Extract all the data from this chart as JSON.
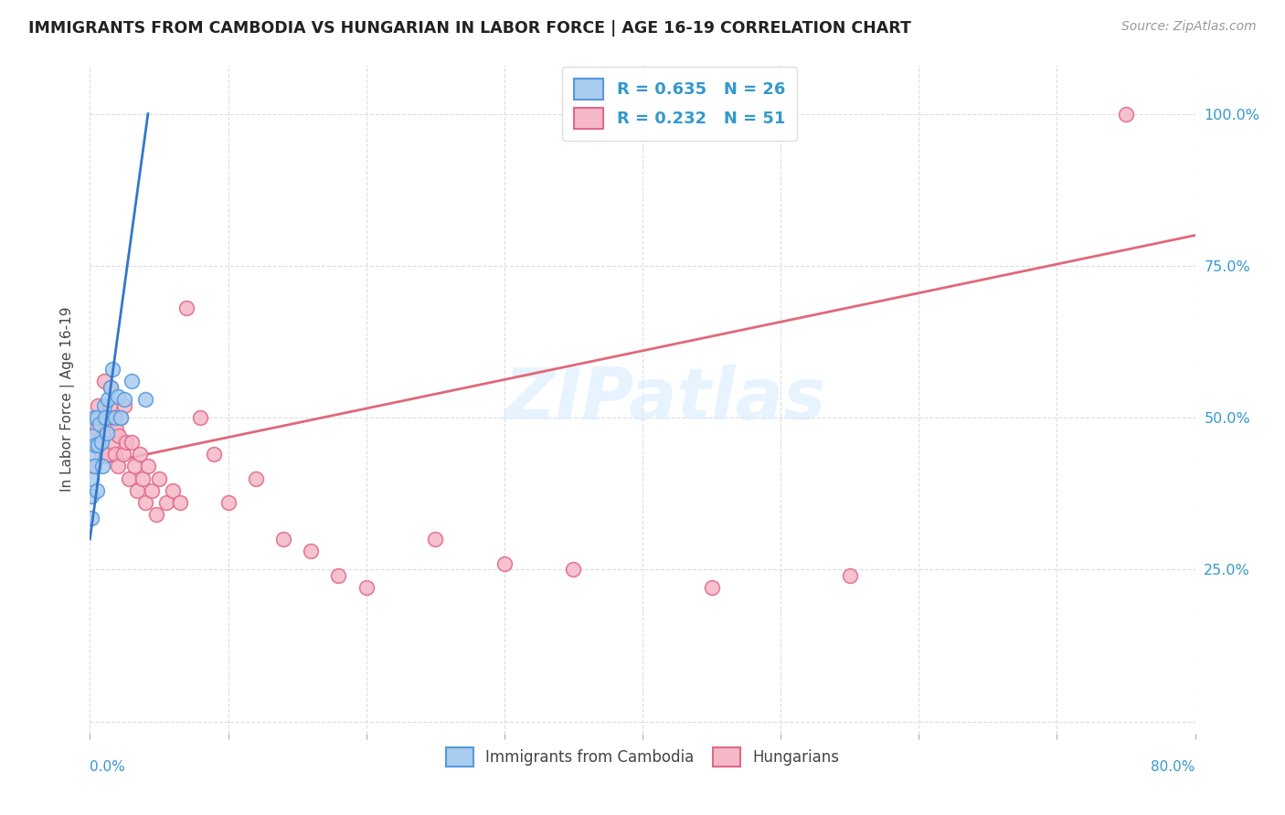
{
  "title": "IMMIGRANTS FROM CAMBODIA VS HUNGARIAN IN LABOR FORCE | AGE 16-19 CORRELATION CHART",
  "source": "Source: ZipAtlas.com",
  "ylabel": "In Labor Force | Age 16-19",
  "xmin": 0.0,
  "xmax": 0.8,
  "ymin": -0.02,
  "ymax": 1.08,
  "legend_label1": "Immigrants from Cambodia",
  "legend_label2": "Hungarians",
  "R1": 0.635,
  "N1": 26,
  "R2": 0.232,
  "N2": 51,
  "color_cambodia_fill": "#aaccee",
  "color_cambodia_edge": "#5599dd",
  "color_hungarian_fill": "#f5b8c8",
  "color_hungarian_edge": "#e06888",
  "color_cambodia_line": "#3377cc",
  "color_hungarian_line": "#e06878",
  "ytick_labels": [
    "",
    "25.0%",
    "50.0%",
    "75.0%",
    "100.0%"
  ],
  "ytick_positions": [
    0.0,
    0.25,
    0.5,
    0.75,
    1.0
  ],
  "cambodia_x": [
    0.001,
    0.001,
    0.001,
    0.002,
    0.002,
    0.003,
    0.003,
    0.004,
    0.005,
    0.005,
    0.006,
    0.007,
    0.008,
    0.009,
    0.01,
    0.011,
    0.012,
    0.013,
    0.015,
    0.016,
    0.018,
    0.02,
    0.022,
    0.025,
    0.03,
    0.04
  ],
  "cambodia_y": [
    0.335,
    0.37,
    0.4,
    0.44,
    0.47,
    0.42,
    0.5,
    0.455,
    0.38,
    0.5,
    0.455,
    0.49,
    0.46,
    0.42,
    0.52,
    0.5,
    0.475,
    0.53,
    0.55,
    0.58,
    0.5,
    0.535,
    0.5,
    0.53,
    0.56,
    0.53
  ],
  "hungarian_x": [
    0.003,
    0.005,
    0.006,
    0.007,
    0.008,
    0.009,
    0.01,
    0.01,
    0.012,
    0.013,
    0.014,
    0.015,
    0.016,
    0.017,
    0.018,
    0.019,
    0.02,
    0.021,
    0.022,
    0.024,
    0.025,
    0.026,
    0.028,
    0.03,
    0.032,
    0.034,
    0.036,
    0.038,
    0.04,
    0.042,
    0.045,
    0.048,
    0.05,
    0.055,
    0.06,
    0.065,
    0.07,
    0.08,
    0.09,
    0.1,
    0.12,
    0.14,
    0.16,
    0.18,
    0.2,
    0.25,
    0.3,
    0.35,
    0.45,
    0.55,
    0.75
  ],
  "hungarian_y": [
    0.42,
    0.48,
    0.52,
    0.5,
    0.44,
    0.47,
    0.56,
    0.5,
    0.48,
    0.44,
    0.52,
    0.55,
    0.46,
    0.5,
    0.44,
    0.48,
    0.42,
    0.47,
    0.5,
    0.44,
    0.52,
    0.46,
    0.4,
    0.46,
    0.42,
    0.38,
    0.44,
    0.4,
    0.36,
    0.42,
    0.38,
    0.34,
    0.4,
    0.36,
    0.38,
    0.36,
    0.68,
    0.5,
    0.44,
    0.36,
    0.4,
    0.3,
    0.28,
    0.24,
    0.22,
    0.3,
    0.26,
    0.25,
    0.22,
    0.24,
    1.0
  ],
  "cambodia_line_x": [
    0.0,
    0.042
  ],
  "cambodia_line_y": [
    0.3,
    1.0
  ],
  "hungarian_line_x": [
    0.0,
    0.8
  ],
  "hungarian_line_y": [
    0.42,
    0.8
  ]
}
